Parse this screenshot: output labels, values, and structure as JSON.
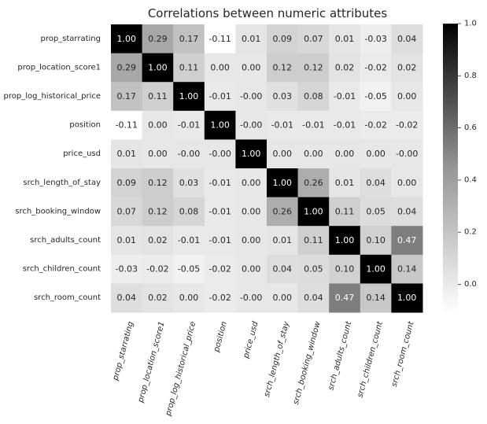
{
  "chart_data": {
    "type": "heatmap",
    "title": "Correlations between numeric attributes",
    "labels": [
      "prop_starrating",
      "prop_location_score1",
      "prop_log_historical_price",
      "position",
      "price_usd",
      "srch_length_of_stay",
      "srch_booking_window",
      "srch_adults_count",
      "srch_children_count",
      "srch_room_count"
    ],
    "matrix": [
      [
        1.0,
        0.29,
        0.17,
        -0.11,
        0.01,
        0.09,
        0.07,
        0.01,
        -0.03,
        0.04
      ],
      [
        0.29,
        1.0,
        0.11,
        0.0,
        0.0,
        0.12,
        0.12,
        0.02,
        -0.02,
        0.02
      ],
      [
        0.17,
        0.11,
        1.0,
        -0.01,
        -0.0,
        0.03,
        0.08,
        -0.01,
        -0.05,
        0.0
      ],
      [
        -0.11,
        0.0,
        -0.01,
        1.0,
        -0.0,
        -0.01,
        -0.01,
        -0.01,
        -0.02,
        -0.02
      ],
      [
        0.01,
        0.0,
        -0.0,
        -0.0,
        1.0,
        0.0,
        0.0,
        0.0,
        0.0,
        -0.0
      ],
      [
        0.09,
        0.12,
        0.03,
        -0.01,
        0.0,
        1.0,
        0.26,
        0.01,
        0.04,
        0.0
      ],
      [
        0.07,
        0.12,
        0.08,
        -0.01,
        0.0,
        0.26,
        1.0,
        0.11,
        0.05,
        0.04
      ],
      [
        0.01,
        0.02,
        -0.01,
        -0.01,
        0.0,
        0.01,
        0.11,
        1.0,
        0.1,
        0.47
      ],
      [
        -0.03,
        -0.02,
        -0.05,
        -0.02,
        0.0,
        0.04,
        0.05,
        0.1,
        1.0,
        0.14
      ],
      [
        0.04,
        0.02,
        0.0,
        -0.02,
        -0.0,
        0.0,
        0.04,
        0.47,
        0.14,
        1.0
      ]
    ],
    "colormap": "greys",
    "vmin": -0.11,
    "vmax": 1.0,
    "colorbar_ticks": [
      "0.0",
      "0.2",
      "0.4",
      "0.6",
      "0.8",
      "1.0"
    ],
    "annotation_format": "0.00"
  }
}
